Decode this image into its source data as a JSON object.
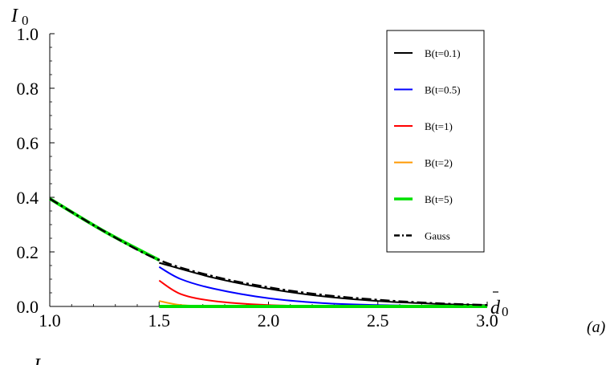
{
  "chart_data": {
    "type": "line",
    "xlabel": "d",
    "xlabel_sub": "0",
    "xlabel_bar": true,
    "ylabel": "I",
    "ylabel_sub": "0",
    "xlim": [
      1.0,
      3.0
    ],
    "ylim": [
      0.0,
      1.0
    ],
    "x_ticks": [
      "1.0",
      "1.5",
      "2.0",
      "2.5",
      "3.0"
    ],
    "y_ticks": [
      "0.0",
      "0.2",
      "0.4",
      "0.6",
      "0.8",
      "1.0"
    ],
    "grid": false,
    "legend_position": "top-right",
    "panel_label": "(a)",
    "bottom_fragment": "I",
    "series": [
      {
        "name": "B(t=0.1)",
        "color": "#000000",
        "dash": "solid",
        "width": 2,
        "x": [
          1.0,
          1.25,
          1.5,
          1.5,
          1.75,
          2.0,
          2.25,
          2.5,
          2.75,
          3.0
        ],
        "y": [
          0.395,
          0.275,
          0.17,
          0.16,
          0.105,
          0.065,
          0.037,
          0.02,
          0.01,
          0.004
        ]
      },
      {
        "name": "B(t=0.5)",
        "color": "#0000ff",
        "dash": "solid",
        "width": 2,
        "x": [
          1.0,
          1.25,
          1.5,
          1.5,
          1.6,
          1.75,
          2.0,
          2.25,
          2.5,
          2.75,
          3.0
        ],
        "y": [
          0.395,
          0.275,
          0.17,
          0.145,
          0.1,
          0.065,
          0.03,
          0.012,
          0.005,
          0.002,
          0.0
        ]
      },
      {
        "name": "B(t=1)",
        "color": "#ff0000",
        "dash": "solid",
        "width": 2,
        "x": [
          1.0,
          1.25,
          1.5,
          1.5,
          1.6,
          1.75,
          2.0,
          2.25,
          2.5,
          3.0
        ],
        "y": [
          0.395,
          0.275,
          0.17,
          0.095,
          0.045,
          0.02,
          0.005,
          0.001,
          0.0,
          0.0
        ]
      },
      {
        "name": "B(t=2)",
        "color": "#ff9900",
        "dash": "solid",
        "width": 2,
        "x": [
          1.0,
          1.25,
          1.5,
          1.5,
          1.6,
          1.75,
          2.0,
          3.0
        ],
        "y": [
          0.395,
          0.275,
          0.17,
          0.02,
          0.005,
          0.001,
          0.0,
          0.0
        ]
      },
      {
        "name": "B(t=5)",
        "color": "#00e000",
        "dash": "solid",
        "width": 4,
        "x": [
          1.0,
          1.25,
          1.5,
          1.5,
          3.0
        ],
        "y": [
          0.395,
          0.275,
          0.17,
          0.0,
          0.0
        ]
      },
      {
        "name": "Gauss",
        "color": "#000000",
        "dash": "dashdot",
        "width": 2.5,
        "x": [
          1.0,
          1.25,
          1.5,
          1.75,
          2.0,
          2.25,
          2.5,
          2.75,
          3.0
        ],
        "y": [
          0.395,
          0.275,
          0.17,
          0.11,
          0.07,
          0.042,
          0.024,
          0.012,
          0.005
        ]
      }
    ]
  }
}
